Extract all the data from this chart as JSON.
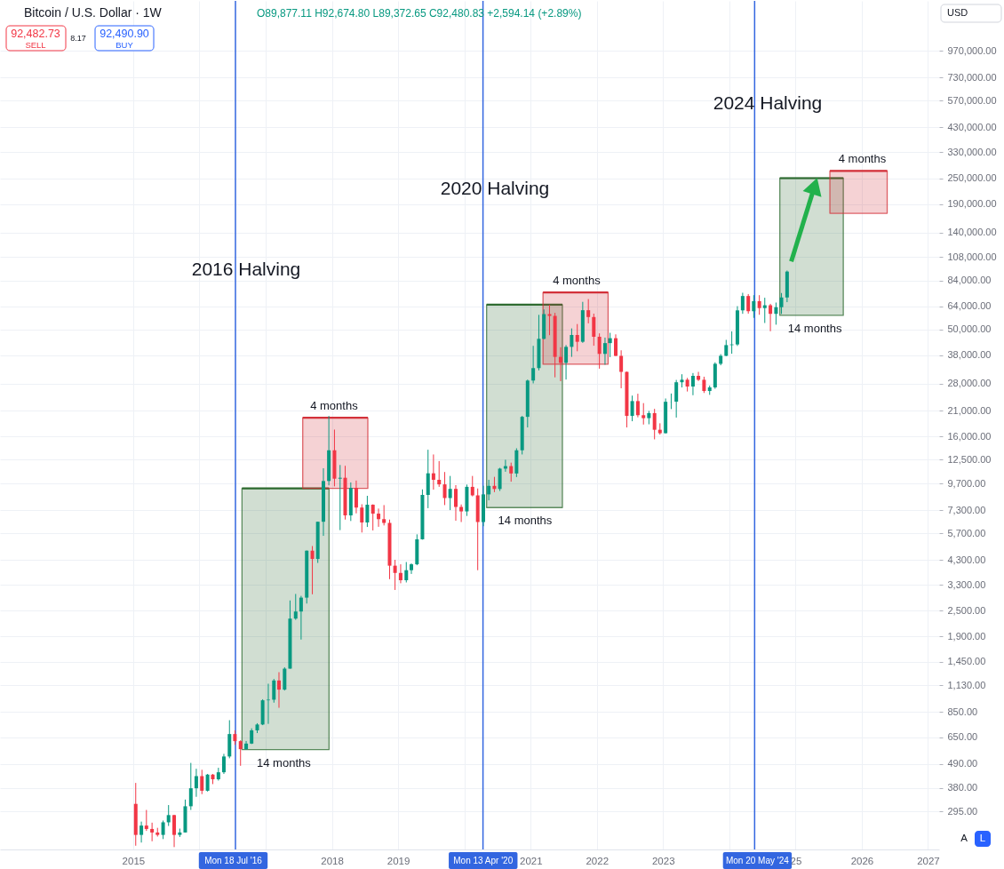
{
  "chart_data": {
    "type": "candlestick",
    "title": "Bitcoin / U.S. Dollar · 1W",
    "subtitle": "O89,877.11 H92,674.80 L89,372.65 C92,480.83 +2,594.14 (+2.89%)",
    "x": [
      "2015-01-15",
      "2015-02-15",
      "2015-03-15",
      "2015-04-15",
      "2015-05-15",
      "2015-06-15",
      "2015-07-15",
      "2015-08-15",
      "2015-09-15",
      "2015-10-15",
      "2015-11-15",
      "2015-12-15",
      "2016-01-15",
      "2016-02-15",
      "2016-03-15",
      "2016-04-15",
      "2016-05-15",
      "2016-06-15",
      "2016-07-15",
      "2016-08-15",
      "2016-09-15",
      "2016-10-15",
      "2016-11-15",
      "2016-12-15",
      "2017-01-15",
      "2017-02-15",
      "2017-03-15",
      "2017-04-15",
      "2017-05-15",
      "2017-06-15",
      "2017-07-15",
      "2017-08-15",
      "2017-09-15",
      "2017-10-15",
      "2017-11-15",
      "2017-12-15",
      "2018-01-15",
      "2018-02-15",
      "2018-03-15",
      "2018-04-15",
      "2018-05-15",
      "2018-06-15",
      "2018-07-15",
      "2018-08-15",
      "2018-09-15",
      "2018-10-15",
      "2018-11-15",
      "2018-12-15",
      "2019-01-15",
      "2019-02-15",
      "2019-03-15",
      "2019-04-15",
      "2019-05-15",
      "2019-06-15",
      "2019-07-15",
      "2019-08-15",
      "2019-09-15",
      "2019-10-15",
      "2019-11-15",
      "2019-12-15",
      "2020-01-15",
      "2020-02-15",
      "2020-03-15",
      "2020-04-15",
      "2020-05-15",
      "2020-06-15",
      "2020-07-15",
      "2020-08-15",
      "2020-09-15",
      "2020-10-15",
      "2020-11-15",
      "2020-12-15",
      "2021-01-15",
      "2021-02-15",
      "2021-03-15",
      "2021-04-15",
      "2021-05-15",
      "2021-06-15",
      "2021-07-15",
      "2021-08-15",
      "2021-09-15",
      "2021-10-15",
      "2021-11-15",
      "2021-12-15",
      "2022-01-15",
      "2022-02-15",
      "2022-03-15",
      "2022-04-15",
      "2022-05-15",
      "2022-06-15",
      "2022-07-15",
      "2022-08-15",
      "2022-09-15",
      "2022-10-15",
      "2022-11-15",
      "2022-12-15",
      "2023-01-15",
      "2023-02-15",
      "2023-03-15",
      "2023-04-15",
      "2023-05-15",
      "2023-06-15",
      "2023-07-15",
      "2023-08-15",
      "2023-09-15",
      "2023-10-15",
      "2023-11-15",
      "2023-12-15",
      "2024-01-15",
      "2024-02-15",
      "2024-03-15",
      "2024-04-15",
      "2024-05-15",
      "2024-06-15",
      "2024-07-15",
      "2024-08-15",
      "2024-09-15",
      "2024-10-15",
      "2024-11-15"
    ],
    "ohlc": [
      [
        320,
        400,
        205,
        230
      ],
      [
        230,
        265,
        212,
        254
      ],
      [
        254,
        300,
        240,
        245
      ],
      [
        245,
        262,
        215,
        236
      ],
      [
        236,
        248,
        226,
        230
      ],
      [
        230,
        268,
        220,
        263
      ],
      [
        263,
        316,
        253,
        284
      ],
      [
        284,
        285,
        202,
        230
      ],
      [
        230,
        246,
        225,
        236
      ],
      [
        236,
        335,
        236,
        312
      ],
      [
        312,
        495,
        300,
        378
      ],
      [
        378,
        465,
        345,
        430
      ],
      [
        430,
        460,
        355,
        368
      ],
      [
        368,
        440,
        365,
        437
      ],
      [
        437,
        440,
        395,
        416
      ],
      [
        416,
        470,
        410,
        448
      ],
      [
        448,
        545,
        440,
        530
      ],
      [
        530,
        780,
        520,
        673
      ],
      [
        673,
        700,
        600,
        624
      ],
      [
        624,
        630,
        480,
        573
      ],
      [
        573,
        625,
        570,
        608
      ],
      [
        608,
        715,
        605,
        700
      ],
      [
        700,
        755,
        680,
        745
      ],
      [
        745,
        975,
        740,
        964
      ],
      [
        964,
        1150,
        750,
        970
      ],
      [
        970,
        1210,
        940,
        1190
      ],
      [
        1190,
        1300,
        890,
        1080
      ],
      [
        1080,
        1370,
        1070,
        1350
      ],
      [
        1350,
        2790,
        1350,
        2300
      ],
      [
        2300,
        2990,
        2270,
        2480
      ],
      [
        2480,
        2930,
        1840,
        2875
      ],
      [
        2875,
        4750,
        2700,
        4740
      ],
      [
        4740,
        4980,
        2980,
        4340
      ],
      [
        4340,
        6450,
        4160,
        6450
      ],
      [
        6450,
        11400,
        5550,
        9950
      ],
      [
        9950,
        19890,
        9500,
        13800
      ],
      [
        13800,
        17200,
        9400,
        10200
      ],
      [
        10200,
        11800,
        5900,
        10300
      ],
      [
        10300,
        11700,
        6600,
        6900
      ],
      [
        6900,
        9800,
        6500,
        9250
      ],
      [
        9250,
        10000,
        7050,
        7500
      ],
      [
        7500,
        7770,
        5750,
        6400
      ],
      [
        6400,
        8500,
        6100,
        7730
      ],
      [
        7730,
        7760,
        5880,
        7030
      ],
      [
        7030,
        7420,
        6110,
        6630
      ],
      [
        6630,
        7700,
        6200,
        6370
      ],
      [
        6370,
        6600,
        3500,
        4040
      ],
      [
        4040,
        4300,
        3120,
        3740
      ],
      [
        3740,
        4100,
        3350,
        3460
      ],
      [
        3460,
        4200,
        3380,
        3850
      ],
      [
        3850,
        4140,
        3700,
        4100
      ],
      [
        4100,
        5640,
        4060,
        5350
      ],
      [
        5350,
        9100,
        5330,
        8580
      ],
      [
        8580,
        13880,
        7450,
        10800
      ],
      [
        10800,
        13200,
        9080,
        10080
      ],
      [
        10080,
        12300,
        9350,
        9600
      ],
      [
        9600,
        10950,
        7700,
        8300
      ],
      [
        8300,
        10500,
        7300,
        9150
      ],
      [
        9150,
        9520,
        6520,
        7550
      ],
      [
        7550,
        7750,
        6430,
        7200
      ],
      [
        7200,
        9580,
        6860,
        9350
      ],
      [
        9350,
        10500,
        8450,
        8540
      ],
      [
        8540,
        9190,
        3850,
        6430
      ],
      [
        6430,
        9460,
        6150,
        8630
      ],
      [
        8630,
        10080,
        8100,
        9450
      ],
      [
        9450,
        10400,
        8840,
        9140
      ],
      [
        9140,
        11450,
        8950,
        11350
      ],
      [
        11350,
        12480,
        10980,
        11660
      ],
      [
        11660,
        12100,
        9880,
        10780
      ],
      [
        10780,
        14100,
        10380,
        13800
      ],
      [
        13800,
        19900,
        13200,
        19700
      ],
      [
        19700,
        29300,
        17600,
        28990
      ],
      [
        28990,
        41950,
        28130,
        33100
      ],
      [
        33100,
        58350,
        32300,
        45200
      ],
      [
        45200,
        61800,
        45000,
        58800
      ],
      [
        58800,
        64900,
        47000,
        57700
      ],
      [
        57700,
        59600,
        30000,
        37300
      ],
      [
        37300,
        41300,
        28800,
        35000
      ],
      [
        35000,
        42300,
        29300,
        41500
      ],
      [
        41500,
        50500,
        37300,
        47100
      ],
      [
        47100,
        52900,
        39600,
        43800
      ],
      [
        43800,
        67000,
        43300,
        61300
      ],
      [
        61300,
        69000,
        53300,
        57000
      ],
      [
        57000,
        59100,
        42000,
        46200
      ],
      [
        46200,
        47900,
        32900,
        38500
      ],
      [
        38500,
        45800,
        34300,
        43200
      ],
      [
        43200,
        48200,
        37200,
        45500
      ],
      [
        45500,
        47400,
        37600,
        37700
      ],
      [
        37700,
        40000,
        26700,
        31800
      ],
      [
        31800,
        31900,
        17600,
        19900
      ],
      [
        19900,
        24700,
        18800,
        23300
      ],
      [
        23300,
        25200,
        19600,
        20050
      ],
      [
        20050,
        22800,
        18150,
        19430
      ],
      [
        19430,
        20990,
        18200,
        20500
      ],
      [
        20500,
        21450,
        15500,
        17170
      ],
      [
        17170,
        18390,
        16300,
        16550
      ],
      [
        16550,
        23950,
        16500,
        23130
      ],
      [
        23130,
        25250,
        21400,
        23150
      ],
      [
        23150,
        29190,
        19550,
        28470
      ],
      [
        28470,
        31000,
        26940,
        29250
      ],
      [
        29250,
        29820,
        25800,
        27200
      ],
      [
        27200,
        31400,
        24800,
        30480
      ],
      [
        30480,
        31800,
        28850,
        29230
      ],
      [
        29230,
        30200,
        25400,
        25940
      ],
      [
        25940,
        27500,
        24900,
        26960
      ],
      [
        26960,
        35200,
        26550,
        34650
      ],
      [
        34650,
        38400,
        34100,
        37720
      ],
      [
        37720,
        44700,
        37600,
        42280
      ],
      [
        42280,
        48970,
        38550,
        42580
      ],
      [
        42580,
        64000,
        41900,
        61200
      ],
      [
        61200,
        73800,
        59000,
        71300
      ],
      [
        71300,
        72800,
        59100,
        60650
      ],
      [
        60650,
        71950,
        56500,
        67500
      ],
      [
        67500,
        71950,
        58400,
        62700
      ],
      [
        62700,
        70000,
        53500,
        64600
      ],
      [
        64600,
        65600,
        49000,
        58970
      ],
      [
        58970,
        66500,
        52550,
        63300
      ],
      [
        63300,
        73600,
        58900,
        70200
      ],
      [
        70200,
        93500,
        66800,
        92480
      ]
    ],
    "colors": [
      "#f23645",
      "#089981",
      "#f23645",
      "#f23645",
      "#f23645",
      "#089981",
      "#089981",
      "#f23645",
      "#089981",
      "#089981",
      "#089981",
      "#089981",
      "#f23645",
      "#089981",
      "#f23645",
      "#089981",
      "#089981",
      "#089981",
      "#f23645",
      "#f23645",
      "#089981",
      "#089981",
      "#089981",
      "#089981",
      "#089981",
      "#089981",
      "#f23645",
      "#089981",
      "#089981",
      "#089981",
      "#089981",
      "#089981",
      "#f23645",
      "#089981",
      "#089981",
      "#089981",
      "#f23645",
      "#089981",
      "#f23645",
      "#089981",
      "#f23645",
      "#f23645",
      "#089981",
      "#f23645",
      "#f23645",
      "#f23645",
      "#f23645",
      "#f23645",
      "#f23645",
      "#089981",
      "#089981",
      "#089981",
      "#089981",
      "#089981",
      "#f23645",
      "#f23645",
      "#f23645",
      "#089981",
      "#f23645",
      "#f23645",
      "#089981",
      "#f23645",
      "#f23645",
      "#089981",
      "#089981",
      "#f23645",
      "#089981",
      "#089981",
      "#f23645",
      "#089981",
      "#089981",
      "#089981",
      "#089981",
      "#089981",
      "#089981",
      "#f23645",
      "#f23645",
      "#f23645",
      "#089981",
      "#089981",
      "#f23645",
      "#089981",
      "#f23645",
      "#f23645",
      "#f23645",
      "#089981",
      "#089981",
      "#f23645",
      "#f23645",
      "#f23645",
      "#089981",
      "#f23645",
      "#f23645",
      "#089981",
      "#f23645",
      "#f23645",
      "#089981",
      "#089981",
      "#089981",
      "#089981",
      "#f23645",
      "#089981",
      "#f23645",
      "#f23645",
      "#089981",
      "#089981",
      "#089981",
      "#089981",
      "#089981",
      "#089981",
      "#089981",
      "#f23645",
      "#089981",
      "#f23645",
      "#089981",
      "#f23645",
      "#089981",
      "#089981",
      "#089981"
    ],
    "series": [
      {
        "type": "line",
        "color": "#2e6b30",
        "x": [
          "2016-08-23",
          "2017-12-16"
        ],
        "values": [
          9200,
          9200
        ],
        "lower": [
          570,
          570
        ],
        "upper": [
          9200,
          9200
        ]
      },
      {
        "type": "line",
        "color": "#d3313a",
        "x": [
          "2017-07-24",
          "2018-07-18"
        ],
        "values": [
          19500,
          19500
        ],
        "lower": [
          9200,
          9200
        ],
        "upper": [
          19500,
          19500
        ]
      },
      {
        "type": "line",
        "color": "#2e6b30",
        "x": [
          "2020-05-03",
          "2021-06-25"
        ],
        "values": [
          65000,
          65000
        ],
        "lower": [
          7500,
          7500
        ],
        "upper": [
          65000,
          65000
        ]
      },
      {
        "type": "line",
        "color": "#d3313a",
        "x": [
          "2021-03-10",
          "2022-03-04"
        ],
        "values": [
          74000,
          74000
        ],
        "lower": [
          34500,
          34500
        ],
        "upper": [
          74000,
          74000
        ]
      },
      {
        "type": "line",
        "color": "#2e6b30",
        "x": [
          "2024-10-06",
          "2025-09-21"
        ],
        "values": [
          250000,
          250000
        ],
        "lower": [
          58000,
          58000
        ],
        "upper": [
          250000,
          250000
        ]
      },
      {
        "type": "line",
        "color": "#d3313a",
        "x": [
          "2025-07-09",
          "2026-05-21"
        ],
        "values": [
          270000,
          270000
        ],
        "lower": [
          172000,
          172000
        ],
        "upper": [
          270000,
          270000
        ]
      },
      {
        "type": "line",
        "color": "#22b14c",
        "x": [
          "2024-12-08",
          "2025-04-16"
        ],
        "values": [
          103000,
          230000
        ]
      }
    ],
    "ref_lines": [
      {
        "axis": "x",
        "value": "2016-07-18",
        "label": "Mon 18 Jul '16",
        "color": "#3366e0"
      },
      {
        "axis": "x",
        "value": "2020-04-13",
        "label": "Mon 13 Apr '20",
        "color": "#3366e0"
      },
      {
        "axis": "x",
        "value": "2024-05-20",
        "label": "Mon 20 May '24",
        "color": "#3366e0"
      }
    ],
    "annotations": [
      "92,482.73",
      "SELL",
      "8.17",
      "92,490.90",
      "BUY",
      "USD",
      "A",
      "L",
      "2016 Halving",
      "2020 Halving",
      "2024 Halving",
      "14 months",
      "4 months",
      "14 months",
      "4 months",
      "14 months",
      "4 months"
    ],
    "xlim": [
      "2013-01-21",
      "2027-02-07"
    ],
    "ylim": [
      197,
      1650000
    ],
    "xticks": [
      "2015",
      {
        "value": "2016",
        "label": null
      },
      {
        "value": "2017",
        "label": null
      },
      "2018",
      "2019",
      {
        "value": "2020",
        "label": null
      },
      "2021",
      "2022",
      "2023",
      {
        "value": "2024",
        "label": null
      },
      {
        "value": "2025",
        "label": "25"
      },
      "2026",
      "2027"
    ],
    "yticks": [
      {
        "value": 295,
        "label": "295.00"
      },
      {
        "value": 380,
        "label": "380.00"
      },
      {
        "value": 490,
        "label": "490.00"
      },
      {
        "value": 650,
        "label": "650.00"
      },
      {
        "value": 850,
        "label": "850.00"
      },
      {
        "value": 1130,
        "label": "1,130.00"
      },
      {
        "value": 1450,
        "label": "1,450.00"
      },
      {
        "value": 1900,
        "label": "1,900.00"
      },
      {
        "value": 2500,
        "label": "2,500.00"
      },
      {
        "value": 3300,
        "label": "3,300.00"
      },
      {
        "value": 4300,
        "label": "4,300.00"
      },
      {
        "value": 5700,
        "label": "5,700.00"
      },
      {
        "value": 7300,
        "label": "7,300.00"
      },
      {
        "value": 9700,
        "label": "9,700.00"
      },
      {
        "value": 12500,
        "label": "12,500.00"
      },
      {
        "value": 16000,
        "label": "16,000.00"
      },
      {
        "value": 21000,
        "label": "21,000.00"
      },
      {
        "value": 28000,
        "label": "28,000.00"
      },
      {
        "value": 38000,
        "label": "38,000.00"
      },
      {
        "value": 50000,
        "label": "50,000.00"
      },
      {
        "value": 64000,
        "label": "64,000.00"
      },
      {
        "value": 84000,
        "label": "84,000.00"
      },
      {
        "value": 108000,
        "label": "108,000.00"
      },
      {
        "value": 140000,
        "label": "140,000.00"
      },
      {
        "value": 190000,
        "label": "190,000.00"
      },
      {
        "value": 250000,
        "label": "250,000.00"
      },
      {
        "value": 330000,
        "label": "330,000.00"
      },
      {
        "value": 430000,
        "label": "430,000.00"
      },
      {
        "value": 570000,
        "label": "570,000.00"
      },
      {
        "value": 730000,
        "label": "730,000.00"
      },
      {
        "value": 970000,
        "label": "970,000.00"
      }
    ],
    "log": "y",
    "grid": true
  }
}
